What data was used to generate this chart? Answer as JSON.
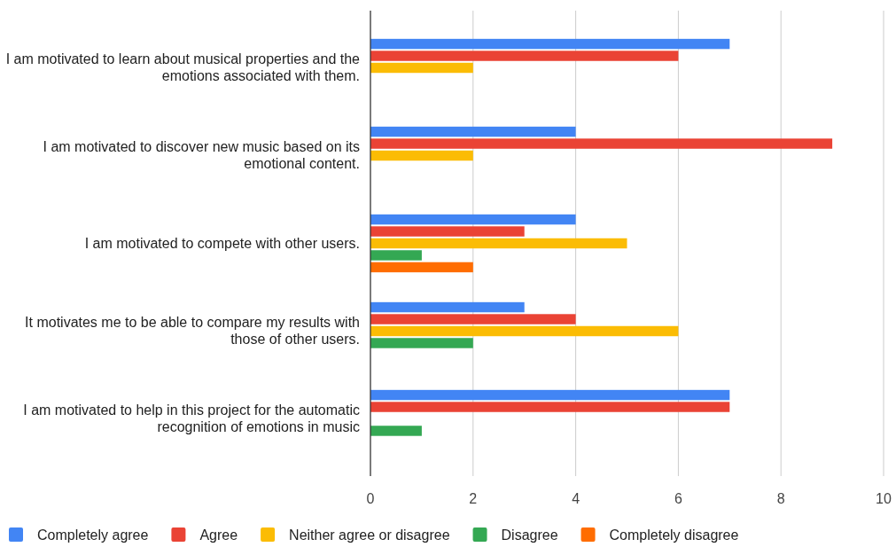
{
  "chart_data": {
    "type": "bar",
    "orientation": "horizontal",
    "categories": [
      "I am motivated to learn about musical properties and the emotions associated with them.",
      "I am motivated to discover new music based on its emotional content.",
      "I am motivated to compete with other users.",
      "It motivates me to be able to compare my results with those of other users.",
      "I am motivated to help in this project for the automatic recognition of emotions in music"
    ],
    "series": [
      {
        "name": "Completely agree",
        "color": "#4285f4",
        "values": [
          7,
          4,
          4,
          3,
          7
        ]
      },
      {
        "name": "Agree",
        "color": "#ea4335",
        "values": [
          6,
          9,
          3,
          4,
          7
        ]
      },
      {
        "name": "Neither agree or disagree",
        "color": "#fbbc04",
        "values": [
          2,
          2,
          5,
          6,
          null
        ]
      },
      {
        "name": "Disagree",
        "color": "#34a853",
        "values": [
          null,
          null,
          1,
          2,
          1
        ]
      },
      {
        "name": "Completely disagree",
        "color": "#ff6d01",
        "values": [
          null,
          null,
          2,
          null,
          null
        ]
      }
    ],
    "xlim": [
      0,
      10
    ],
    "xticks": [
      0,
      2,
      4,
      6,
      8,
      10
    ],
    "grid": "x",
    "legend": "bottom"
  }
}
